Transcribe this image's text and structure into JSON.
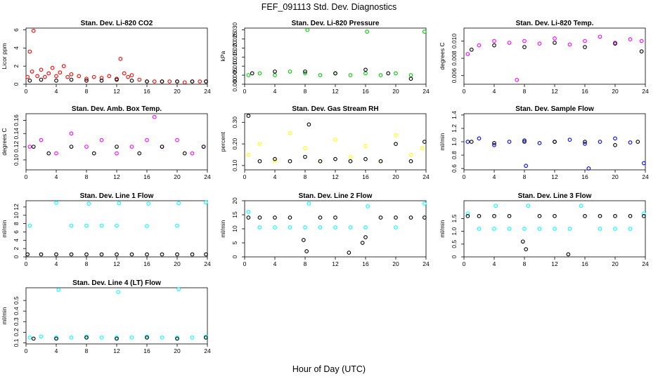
{
  "figure": {
    "title": "FEF_091113  Std. Dev. Diagnostics",
    "xlabel": "Hour of Day (UTC)"
  },
  "chart_data": [
    {
      "type": "scatter",
      "title": "Stan. Dev. Li-820 CO2",
      "ylabel": "Licor ppm",
      "xlim": [
        0,
        24
      ],
      "xticks": [
        0,
        4,
        8,
        12,
        16,
        20,
        24
      ],
      "ylim": [
        0,
        6.2
      ],
      "yticks": [
        0,
        2,
        4,
        6
      ],
      "yticklabels": [
        "0",
        "2",
        "4",
        "6"
      ],
      "series": [
        {
          "color": "#ff0000",
          "x": [
            0.2,
            0.5,
            0.8,
            1,
            1.5,
            2,
            2.5,
            3,
            3.5,
            4,
            4.5,
            5,
            5.5,
            6,
            7,
            8,
            9,
            10,
            11,
            12,
            12.5,
            13,
            13.5,
            14,
            15,
            16,
            17,
            18,
            19,
            20,
            21,
            22,
            23,
            24
          ],
          "y": [
            0.8,
            3.6,
            1.4,
            5.9,
            0.9,
            1.6,
            0.8,
            1.2,
            1.8,
            0.9,
            1.3,
            2.0,
            0.8,
            1.1,
            0.9,
            0.6,
            0.8,
            0.7,
            0.9,
            0.6,
            2.8,
            1.2,
            0.8,
            1.0,
            0.5,
            0.3,
            0.3,
            0.3,
            0.3,
            0.3,
            0.2,
            0.3,
            0.3,
            0.3
          ]
        },
        {
          "color": "#000000",
          "x": [
            0.5,
            2,
            4,
            6,
            8,
            10,
            12,
            14,
            16,
            18,
            20,
            22,
            24
          ],
          "y": [
            0.4,
            0.5,
            0.4,
            0.5,
            0.4,
            0.4,
            0.5,
            0.4,
            0.3,
            0.3,
            0.3,
            0.3,
            0.3
          ]
        }
      ]
    },
    {
      "type": "scatter",
      "title": "Stan. Dev. Li-820 Pressure",
      "ylabel": "kPa",
      "xlim": [
        0,
        24
      ],
      "xticks": [
        0,
        4,
        8,
        12,
        16,
        20,
        24
      ],
      "ylim": [
        0,
        0.031
      ],
      "yticks": [
        0,
        0.005,
        0.01,
        0.015,
        0.02,
        0.025,
        0.03
      ],
      "yticklabels": [
        "0.000",
        "0.005",
        "0.010",
        "0.015",
        "0.020",
        "0.025",
        "0.030"
      ],
      "series": [
        {
          "color": "#00cc00",
          "x": [
            0.5,
            2,
            4,
            6,
            8,
            8.3,
            10,
            12,
            14,
            16,
            16.2,
            18,
            20,
            22,
            23.8
          ],
          "y": [
            0.005,
            0.006,
            0.005,
            0.007,
            0.006,
            0.03,
            0.005,
            0.006,
            0.005,
            0.006,
            0.029,
            0.005,
            0.006,
            0.005,
            0.029
          ]
        },
        {
          "color": "#000000",
          "x": [
            1,
            4,
            8,
            12,
            16,
            19,
            22
          ],
          "y": [
            0.006,
            0.007,
            0.007,
            0.006,
            0.008,
            0.006,
            0.003
          ]
        }
      ]
    },
    {
      "type": "scatter",
      "title": "Stan. Dev. Li-820 Temp.",
      "ylabel": "degrees C",
      "xlim": [
        0,
        24
      ],
      "xticks": [
        0,
        4,
        8,
        12,
        16,
        20,
        24
      ],
      "ylim": [
        0.005,
        0.0115
      ],
      "yticks": [
        0.006,
        0.008,
        0.01
      ],
      "yticklabels": [
        "0.006",
        "0.008",
        "0.010"
      ],
      "series": [
        {
          "color": "#ff00ff",
          "x": [
            0.5,
            2,
            4,
            6,
            7,
            8,
            10,
            12,
            14,
            16,
            18,
            20,
            22,
            23.5
          ],
          "y": [
            0.0085,
            0.0095,
            0.01,
            0.0098,
            0.0055,
            0.01,
            0.0097,
            0.0103,
            0.0096,
            0.01,
            0.0105,
            0.0098,
            0.0102,
            0.01
          ]
        },
        {
          "color": "#000000",
          "x": [
            1,
            4,
            8,
            12,
            16,
            20,
            23.5
          ],
          "y": [
            0.009,
            0.0095,
            0.0093,
            0.0098,
            0.0093,
            0.0097,
            0.0088
          ]
        }
      ]
    },
    {
      "type": "scatter",
      "title": "Stan. Dev. Amb. Box Temp.",
      "ylabel": "degrees C",
      "xlim": [
        0,
        24
      ],
      "xticks": [
        0,
        4,
        8,
        12,
        16,
        20,
        24
      ],
      "ylim": [
        0.085,
        0.17
      ],
      "yticks": [
        0.1,
        0.12,
        0.14,
        0.16
      ],
      "yticklabels": [
        "0.10",
        "0.12",
        "0.14",
        "0.16"
      ],
      "series": [
        {
          "color": "#ff00ff",
          "x": [
            0.5,
            2,
            4,
            6,
            8,
            10,
            12,
            14,
            16,
            17,
            18,
            20,
            22,
            23.5
          ],
          "y": [
            0.12,
            0.13,
            0.11,
            0.14,
            0.12,
            0.13,
            0.11,
            0.12,
            0.13,
            0.165,
            0.12,
            0.13,
            0.11,
            0.12
          ]
        },
        {
          "color": "#000000",
          "x": [
            1,
            3,
            6,
            9,
            12,
            15,
            18,
            21,
            23.5
          ],
          "y": [
            0.12,
            0.11,
            0.12,
            0.11,
            0.12,
            0.11,
            0.12,
            0.11,
            0.12
          ]
        }
      ]
    },
    {
      "type": "scatter",
      "title": "Stan. Dev. Gas Stream RH",
      "ylabel": "percent",
      "xlim": [
        0,
        24
      ],
      "xticks": [
        0,
        4,
        8,
        12,
        16,
        20,
        24
      ],
      "ylim": [
        0.08,
        0.34
      ],
      "yticks": [
        0.1,
        0.2,
        0.3
      ],
      "yticklabels": [
        "0.10",
        "0.20",
        "0.30"
      ],
      "series": [
        {
          "color": "#ffff00",
          "x": [
            0.5,
            2,
            4,
            6,
            8,
            10,
            12,
            14,
            16,
            18,
            20,
            22,
            23.5
          ],
          "y": [
            0.15,
            0.2,
            0.12,
            0.25,
            0.18,
            0.12,
            0.22,
            0.14,
            0.19,
            0.12,
            0.24,
            0.15,
            0.18
          ]
        },
        {
          "color": "#000000",
          "x": [
            0.5,
            2,
            4,
            6,
            8,
            8.5,
            10,
            12,
            14,
            16,
            18,
            20,
            22,
            23.8
          ],
          "y": [
            0.33,
            0.12,
            0.13,
            0.12,
            0.14,
            0.29,
            0.12,
            0.13,
            0.12,
            0.13,
            0.12,
            0.2,
            0.12,
            0.21
          ]
        }
      ]
    },
    {
      "type": "scatter",
      "title": "Stan. Dev. Sample Flow",
      "ylabel": "ml/min",
      "xlim": [
        0,
        24
      ],
      "xticks": [
        0,
        4,
        8,
        12,
        16,
        20,
        24
      ],
      "ylim": [
        0.58,
        1.42
      ],
      "yticks": [
        0.6,
        0.8,
        1.0,
        1.2,
        1.4
      ],
      "yticklabels": [
        "0.6",
        "0.8",
        "1.0",
        "1.2",
        "1.4"
      ],
      "series": [
        {
          "color": "#0000ff",
          "x": [
            0.5,
            2,
            4,
            6,
            8,
            8.2,
            10,
            12,
            14,
            16,
            16.5,
            18,
            20,
            22,
            23.8
          ],
          "y": [
            1.0,
            1.05,
            0.95,
            1.0,
            1.02,
            0.64,
            0.98,
            1.0,
            1.03,
            0.97,
            0.6,
            1.0,
            1.05,
            0.99,
            0.68
          ]
        },
        {
          "color": "#000000",
          "x": [
            1,
            4,
            8,
            12,
            16,
            20,
            23
          ],
          "y": [
            1.0,
            0.98,
            1.0,
            1.0,
            1.0,
            0.95,
            1.0
          ]
        }
      ]
    },
    {
      "type": "scatter",
      "title": "Stan. Dev. Line 1 Flow",
      "ylabel": "ml/min",
      "xlim": [
        0,
        24
      ],
      "xticks": [
        0,
        4,
        8,
        12,
        16,
        20,
        24
      ],
      "ylim": [
        0,
        13.5
      ],
      "yticks": [
        0,
        2,
        4,
        6,
        8,
        10,
        12
      ],
      "yticklabels": [
        "0",
        "2",
        "4",
        "6",
        "8",
        "10",
        "12"
      ],
      "series": [
        {
          "color": "#00ffff",
          "x": [
            0.5,
            4,
            6,
            8,
            8.3,
            10,
            12,
            12.3,
            16,
            16.2,
            20,
            20.2,
            23.8
          ],
          "y": [
            7.5,
            13.0,
            7.5,
            7.5,
            12.8,
            7.5,
            7.5,
            12.9,
            7.4,
            12.8,
            7.5,
            12.9,
            13.1
          ]
        },
        {
          "color": "#000000",
          "x": [
            0.2,
            2,
            4,
            6,
            8,
            10,
            12,
            14,
            16,
            18,
            20,
            22,
            24
          ],
          "y": [
            0.6,
            0.6,
            0.6,
            0.6,
            0.6,
            0.6,
            0.6,
            0.6,
            0.6,
            0.6,
            0.6,
            0.6,
            0.6
          ]
        }
      ]
    },
    {
      "type": "scatter",
      "title": "Stan. Dev. Line 2 Flow",
      "ylabel": "ml/min",
      "xlim": [
        0,
        24
      ],
      "xticks": [
        0,
        4,
        8,
        12,
        16,
        20,
        24
      ],
      "ylim": [
        0,
        20
      ],
      "yticks": [
        0,
        5,
        10,
        15,
        20
      ],
      "yticklabels": [
        "0",
        "5",
        "10",
        "15",
        "20"
      ],
      "series": [
        {
          "color": "#00ffff",
          "x": [
            0.5,
            2,
            4,
            6,
            8,
            8.5,
            10,
            12,
            14,
            16,
            16.3,
            20,
            23.8
          ],
          "y": [
            16,
            10.5,
            10.5,
            10.5,
            10.5,
            19,
            10.5,
            10.5,
            10.5,
            10.5,
            18,
            10.5,
            19
          ]
        },
        {
          "color": "#000000",
          "x": [
            0.5,
            2,
            4,
            6,
            7.8,
            8.2,
            10,
            12,
            13.8,
            15.6,
            16,
            18,
            20,
            22,
            23.8
          ],
          "y": [
            14,
            14,
            14,
            14,
            6,
            2,
            14,
            14,
            1.5,
            5,
            7,
            14,
            14,
            14,
            14
          ]
        }
      ]
    },
    {
      "type": "scatter",
      "title": "Stan. Dev. Line 3 Flow",
      "ylabel": "ml/min",
      "xlim": [
        0,
        24
      ],
      "xticks": [
        0,
        4,
        8,
        12,
        16,
        20,
        24
      ],
      "ylim": [
        0,
        2.2
      ],
      "yticks": [
        0,
        0.5,
        1.0,
        1.5
      ],
      "yticklabels": [
        "0",
        "0.5",
        "1.0",
        "1.5"
      ],
      "series": [
        {
          "color": "#00ffff",
          "x": [
            0.5,
            2,
            4,
            4.2,
            6,
            8,
            8.5,
            10,
            12,
            14,
            15.5,
            18,
            20,
            22,
            23.8
          ],
          "y": [
            1.7,
            1.1,
            1.1,
            2.0,
            1.1,
            1.1,
            2.0,
            1.1,
            1.1,
            1.1,
            2.0,
            1.1,
            1.1,
            1.1,
            1.7
          ]
        },
        {
          "color": "#000000",
          "x": [
            0.5,
            2,
            4,
            6,
            7.8,
            8.2,
            10,
            12,
            13.8,
            16,
            18,
            20,
            22,
            23.8
          ],
          "y": [
            1.6,
            1.6,
            1.6,
            1.6,
            0.6,
            0.3,
            1.6,
            1.6,
            0.1,
            1.6,
            1.6,
            1.6,
            1.6,
            1.6
          ]
        }
      ]
    },
    {
      "type": "scatter",
      "title": "Stan. Dev. Line 4 (LT) Flow",
      "ylabel": "ml/min",
      "xlim": [
        0,
        24
      ],
      "xticks": [
        0,
        4,
        8,
        12,
        16,
        20,
        24
      ],
      "ylim": [
        0.09,
        0.62
      ],
      "yticks": [
        0.1,
        0.2,
        0.3,
        0.4,
        0.5
      ],
      "yticklabels": [
        "0.1",
        "0.2",
        "0.3",
        "0.4",
        "0.5"
      ],
      "series": [
        {
          "color": "#00ffff",
          "x": [
            0.5,
            2,
            4,
            4.3,
            6,
            8,
            10,
            12,
            12.2,
            14,
            16,
            18,
            20,
            20.2,
            22,
            23.8
          ],
          "y": [
            0.15,
            0.16,
            0.15,
            0.6,
            0.15,
            0.16,
            0.15,
            0.15,
            0.58,
            0.15,
            0.16,
            0.15,
            0.15,
            0.61,
            0.15,
            0.16
          ]
        },
        {
          "color": "#000000",
          "x": [
            1,
            4,
            8,
            12,
            16,
            20,
            23.8
          ],
          "y": [
            0.14,
            0.14,
            0.15,
            0.14,
            0.15,
            0.14,
            0.15
          ]
        }
      ]
    }
  ]
}
